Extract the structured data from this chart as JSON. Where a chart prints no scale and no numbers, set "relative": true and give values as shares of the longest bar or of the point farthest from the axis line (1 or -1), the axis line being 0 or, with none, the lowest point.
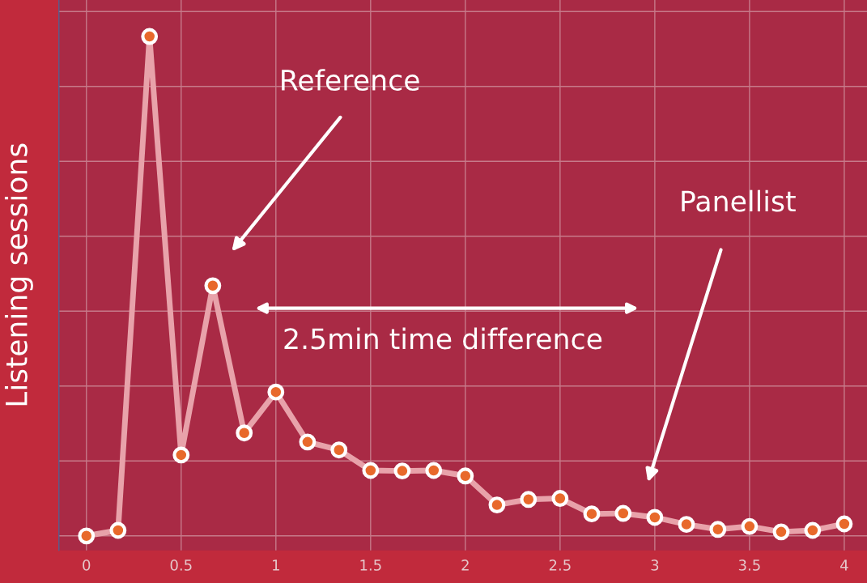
{
  "chart_data": {
    "type": "line",
    "ylabel": "Listening sessions",
    "relative": true,
    "x": [
      0,
      0.167,
      0.333,
      0.5,
      0.667,
      0.833,
      1,
      1.167,
      1.333,
      1.5,
      1.667,
      1.833,
      2,
      2.167,
      2.333,
      2.5,
      2.667,
      2.833,
      3,
      3.167,
      3.333,
      3.5,
      3.667,
      3.833,
      4
    ],
    "series": [
      {
        "color": "#e8a2aa",
        "values": [
          0,
          0.011,
          1,
          0.162,
          0.501,
          0.206,
          0.288,
          0.188,
          0.172,
          0.131,
          0.13,
          0.131,
          0.12,
          0.062,
          0.073,
          0.075,
          0.044,
          0.045,
          0.037,
          0.023,
          0.013,
          0.019,
          0.008,
          0.011,
          0.024
        ]
      }
    ],
    "xlim": [
      -0.145,
      4.12
    ],
    "xticks": [
      0,
      0.5,
      1,
      1.5,
      2,
      2.5,
      3,
      3.5,
      4
    ],
    "grid": true,
    "tick_labels": "x",
    "marker": "circle",
    "line_style": "solid",
    "annotations": [
      "Reference",
      "Panellist",
      "2.5min time difference"
    ]
  }
}
